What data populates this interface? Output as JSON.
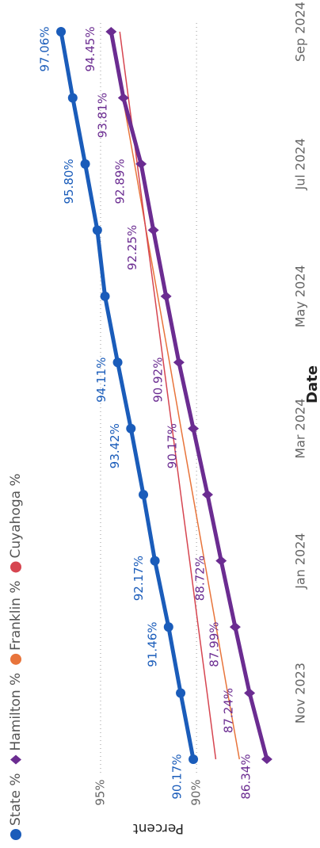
{
  "chart_data": {
    "type": "line",
    "x_label": "Date",
    "y_label": "Percent",
    "x": [
      "2023-10",
      "2023-11",
      "2023-12",
      "2024-01",
      "2024-02",
      "2024-03",
      "2024-04",
      "2024-05",
      "2024-06",
      "2024-07",
      "2024-08",
      "2024-09"
    ],
    "xlim": [
      "2023-10",
      "2024-09"
    ],
    "xticks": [
      {
        "value": "2023-11",
        "label": "Nov 2023"
      },
      {
        "value": "2024-01",
        "label": "Jan 2024"
      },
      {
        "value": "2024-03",
        "label": "Mar 2024"
      },
      {
        "value": "2024-05",
        "label": "May 2024"
      },
      {
        "value": "2024-07",
        "label": "Jul 2024"
      },
      {
        "value": "2024-09",
        "label": "Sep 2024"
      }
    ],
    "ylim": [
      85.8,
      99
    ],
    "yticks": [
      {
        "value": 90,
        "label": "90%"
      },
      {
        "value": 95,
        "label": "95%"
      }
    ],
    "grid": true,
    "legend": "top-left",
    "series": [
      {
        "name": "State %",
        "color": "#1a5cba",
        "marker": "circle",
        "width": 5,
        "values": [
          90.17,
          90.83,
          91.46,
          92.17,
          92.77,
          93.42,
          94.11,
          94.77,
          95.17,
          95.8,
          96.45,
          97.06
        ],
        "value_labels": [
          "90.17%",
          null,
          "91.46%",
          "92.17%",
          null,
          "93.42%",
          "94.11%",
          null,
          null,
          "95.80%",
          null,
          "97.06%"
        ]
      },
      {
        "name": "Hamilton %",
        "color": "#6b2c91",
        "marker": "diamond",
        "width": 5,
        "values": [
          86.34,
          87.24,
          87.99,
          88.72,
          89.43,
          90.17,
          90.92,
          91.59,
          92.25,
          92.89,
          93.81,
          94.45
        ],
        "value_labels": [
          "86.34%",
          "87.24%",
          "87.99%",
          "88.72%",
          null,
          "90.17%",
          "90.92%",
          null,
          "92.25%",
          "92.89%",
          "93.81%",
          "94.45%"
        ]
      },
      {
        "name": "Franklin %",
        "color": "#e8743b",
        "marker": "none",
        "width": 1.5,
        "values": [
          87.77,
          88.38,
          88.98,
          89.59,
          90.2,
          90.81,
          91.41,
          92.02,
          92.63,
          93.23,
          93.84,
          94.45
        ]
      },
      {
        "name": "Cuyahoga %",
        "color": "#d64550",
        "marker": "none",
        "width": 1.5,
        "values": [
          89.0,
          89.45,
          89.91,
          90.36,
          90.82,
          91.27,
          91.73,
          92.18,
          92.64,
          93.09,
          93.55,
          94.0
        ]
      }
    ]
  }
}
